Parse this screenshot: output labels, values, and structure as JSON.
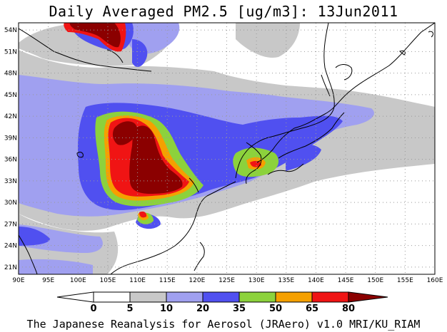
{
  "title": "Daily Averaged PM2.5 [ug/m3]: 13Jun2011",
  "footer": "The Japanese Reanalysis for Aerosol (JRAero) v1.0 MRI/KU_RIAM",
  "map": {
    "lon_range": [
      90,
      160
    ],
    "lat_range": [
      20,
      55
    ],
    "lon_ticks": [
      "90E",
      "95E",
      "100E",
      "105E",
      "110E",
      "115E",
      "120E",
      "125E",
      "130E",
      "135E",
      "140E",
      "145E",
      "150E",
      "155E",
      "160E"
    ],
    "lat_ticks": [
      "54N",
      "51N",
      "48N",
      "45N",
      "42N",
      "39N",
      "36N",
      "33N",
      "30N",
      "27N",
      "24N",
      "21N"
    ],
    "grid": "dotted"
  },
  "colorbar": {
    "labels": [
      "0",
      "5",
      "10",
      "20",
      "35",
      "50",
      "65",
      "80"
    ],
    "colors": [
      "#ffffff",
      "#c8c8c8",
      "#a0a0f0",
      "#5050f0",
      "#8cd23c",
      "#f5a000",
      "#f01414",
      "#8b0000"
    ]
  }
}
